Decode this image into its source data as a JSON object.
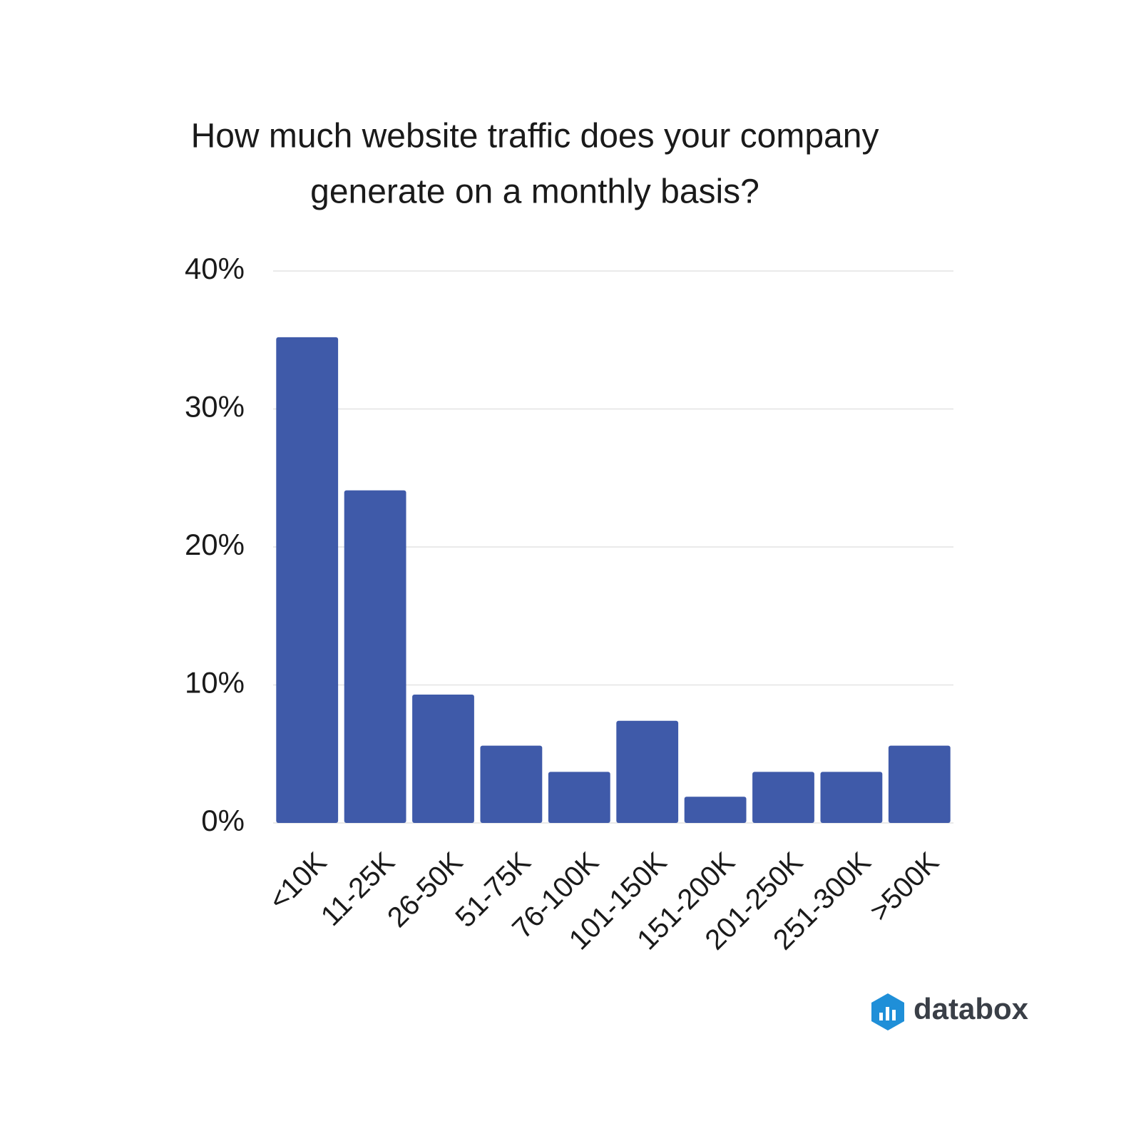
{
  "chart_data": {
    "type": "bar",
    "title_lines": [
      "How much website traffic does your company",
      "generate on a monthly basis?"
    ],
    "categories": [
      "<10K",
      "11-25K",
      "26-50K",
      "51-75K",
      "76-100K",
      "101-150K",
      "151-200K",
      "201-250K",
      "251-300K",
      ">500K"
    ],
    "values": [
      35.2,
      24.1,
      9.3,
      5.6,
      3.7,
      7.4,
      1.9,
      3.7,
      3.7,
      5.6
    ],
    "color": "#3f5aa9",
    "ylim": [
      0,
      40
    ],
    "yticks": [
      {
        "value": 0,
        "label": "0%"
      },
      {
        "value": 10,
        "label": "10%"
      },
      {
        "value": 20,
        "label": "20%"
      },
      {
        "value": 30,
        "label": "30%"
      },
      {
        "value": 40,
        "label": "40%"
      }
    ],
    "grid": true,
    "brand": "databox"
  }
}
